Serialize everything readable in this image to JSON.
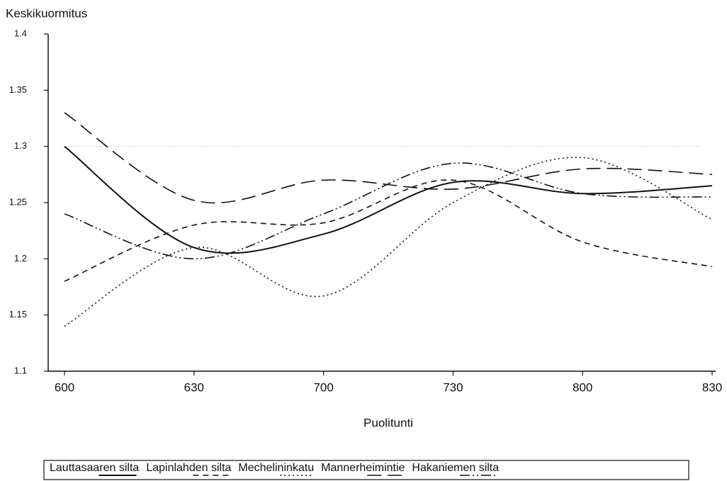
{
  "chart_data": {
    "type": "line",
    "y_label": "Keskikuormitus",
    "x_label": "Puolitunti",
    "categories": [
      "600",
      "630",
      "700",
      "730",
      "800",
      "830"
    ],
    "ylim": [
      1.1,
      1.4
    ],
    "yticks": [
      1.1,
      1.15,
      1.2,
      1.25,
      1.3,
      1.35,
      1.4
    ],
    "reference_line": 1.3,
    "color": "#111111",
    "series": [
      {
        "name": "Lauttasaaren silta",
        "dash": "solid",
        "values": [
          1.3,
          1.21,
          1.222,
          1.268,
          1.258,
          1.265
        ]
      },
      {
        "name": "Lapinlahden silta",
        "dash": "dashed",
        "values": [
          1.18,
          1.23,
          1.232,
          1.27,
          1.215,
          1.193
        ]
      },
      {
        "name": "Mechelininkatu",
        "dash": "dotted",
        "values": [
          1.14,
          1.21,
          1.167,
          1.25,
          1.29,
          1.235
        ]
      },
      {
        "name": "Mannerheimintie",
        "dash": "longdash",
        "values": [
          1.33,
          1.252,
          1.27,
          1.262,
          1.28,
          1.275
        ]
      },
      {
        "name": "Hakaniemen silta",
        "dash": "dashdotdot",
        "values": [
          1.24,
          1.2,
          1.24,
          1.285,
          1.258,
          1.255
        ]
      }
    ]
  }
}
